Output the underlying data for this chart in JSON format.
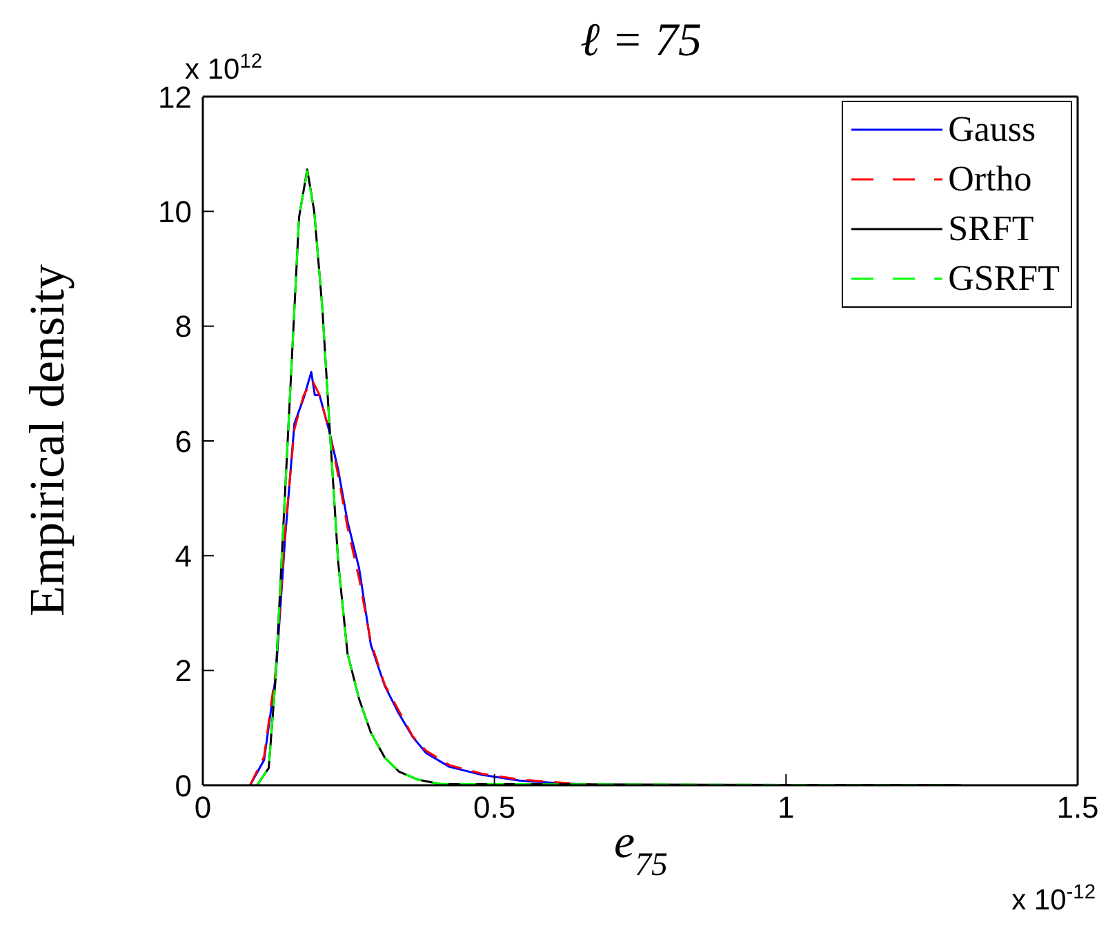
{
  "chart_data": {
    "type": "line",
    "title": "ℓ = 75",
    "xlabel": "e$_{75}$",
    "ylabel": "Empirical density",
    "annotations": [
      "x 10$^{12}$",
      "x 10$^{-12}$"
    ],
    "xlim": [
      0,
      1.5
    ],
    "xticks": [
      0,
      0.5,
      1,
      1.5
    ],
    "ylim": [
      0,
      12
    ],
    "yticks": [
      0,
      2,
      4,
      6,
      8,
      10,
      12
    ],
    "grid": false,
    "legend": "top right",
    "marker": "none",
    "series": [
      {
        "name": "Gauss",
        "color": "#0000ff",
        "line_style": "solid",
        "x": [
          0.081,
          0.105,
          0.125,
          0.141,
          0.157,
          0.173,
          0.186,
          0.192,
          0.2,
          0.216,
          0.232,
          0.248,
          0.268,
          0.288,
          0.312,
          0.336,
          0.36,
          0.383,
          0.423,
          0.479,
          0.543,
          0.606,
          0.678,
          1.3
        ],
        "values": [
          0,
          0.44,
          1.9,
          4.3,
          6.3,
          6.75,
          7.2,
          6.8,
          6.8,
          6.2,
          5.5,
          4.6,
          3.78,
          2.45,
          1.73,
          1.25,
          0.84,
          0.56,
          0.32,
          0.18,
          0.08,
          0.04,
          0,
          0
        ]
      },
      {
        "name": "Ortho",
        "color": "#ff0000",
        "line_style": "dashed",
        "x": [
          0.081,
          0.105,
          0.125,
          0.141,
          0.157,
          0.173,
          0.188,
          0.2,
          0.216,
          0.232,
          0.248,
          0.268,
          0.288,
          0.312,
          0.336,
          0.36,
          0.383,
          0.423,
          0.479,
          0.543,
          0.606,
          0.678,
          1.3
        ],
        "values": [
          0,
          0.5,
          2,
          4.4,
          6.2,
          6.8,
          7.05,
          6.8,
          6.2,
          5.4,
          4.5,
          3.6,
          2.5,
          1.75,
          1.3,
          0.85,
          0.6,
          0.35,
          0.2,
          0.1,
          0.05,
          0,
          0
        ]
      },
      {
        "name": "SRFT",
        "color": "#000000",
        "line_style": "solid",
        "x": [
          0.093,
          0.113,
          0.125,
          0.137,
          0.153,
          0.165,
          0.179,
          0.191,
          0.205,
          0.217,
          0.232,
          0.248,
          0.268,
          0.288,
          0.312,
          0.336,
          0.368,
          0.407,
          1.3
        ],
        "values": [
          0,
          0.3,
          1.9,
          4.3,
          7.5,
          9.9,
          10.73,
          10,
          8.3,
          6.3,
          3.9,
          2.3,
          1.5,
          0.92,
          0.48,
          0.24,
          0.1,
          0.02,
          0
        ]
      },
      {
        "name": "GSRFT",
        "color": "#00ff00",
        "line_style": "dashed",
        "x": [
          0.093,
          0.113,
          0.125,
          0.137,
          0.153,
          0.165,
          0.179,
          0.191,
          0.205,
          0.217,
          0.232,
          0.248,
          0.268,
          0.288,
          0.312,
          0.336,
          0.368,
          0.407,
          1.3
        ],
        "values": [
          0,
          0.3,
          1.9,
          4.3,
          7.5,
          9.9,
          10.7,
          10,
          8.3,
          6.3,
          3.9,
          2.3,
          1.5,
          0.92,
          0.48,
          0.24,
          0.1,
          0.02,
          0
        ]
      }
    ]
  }
}
